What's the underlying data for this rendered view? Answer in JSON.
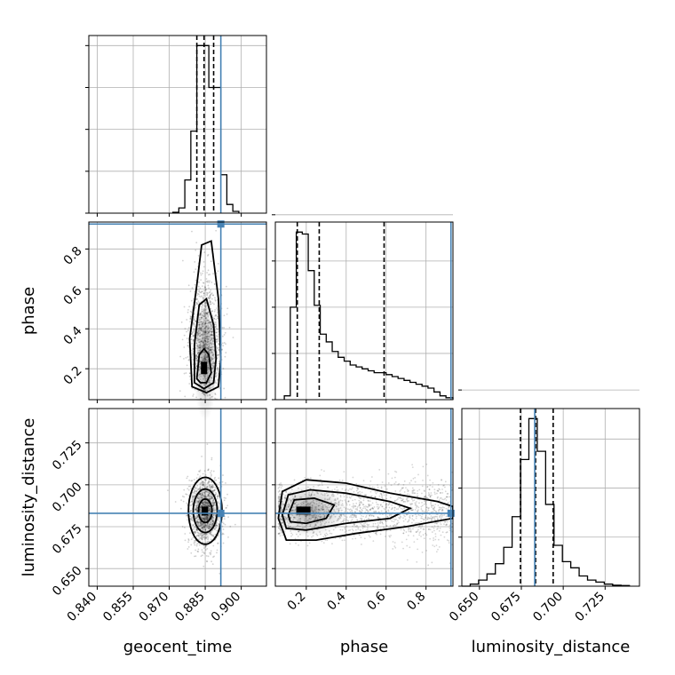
{
  "chart_data": {
    "type": "corner",
    "parameters": [
      "geocent_time",
      "phase",
      "luminosity_distance"
    ],
    "truths": {
      "geocent_time": 0.8915,
      "phase": 0.925,
      "luminosity_distance": 0.683
    },
    "axis_ranges": {
      "geocent_time": [
        0.8365,
        0.9105
      ],
      "phase": [
        0.045,
        0.935
      ],
      "luminosity_distance": [
        0.6395,
        0.7455
      ]
    },
    "ticks": {
      "geocent_time": [
        "0.840",
        "0.855",
        "0.870",
        "0.885",
        "0.900"
      ],
      "phase": [
        "0.2",
        "0.4",
        "0.6",
        "0.8"
      ],
      "luminosity_distance": [
        "0.650",
        "0.675",
        "0.700",
        "0.725"
      ]
    },
    "quantiles": {
      "geocent_time": [
        0.8815,
        0.8845,
        0.8885
      ],
      "phase": [
        0.155,
        0.265,
        0.59
      ],
      "luminosity_distance": [
        0.6745,
        0.6835,
        0.694
      ]
    },
    "histograms": {
      "geocent_time": {
        "edges": [
          0.8715,
          0.874,
          0.8765,
          0.879,
          0.8815,
          0.884,
          0.8865,
          0.889,
          0.8915,
          0.894,
          0.8965,
          0.899
        ],
        "counts": [
          0.5,
          3,
          19,
          47,
          96,
          96,
          72,
          72,
          22,
          5,
          1
        ]
      },
      "phase": {
        "edges": [
          0.09,
          0.12,
          0.15,
          0.18,
          0.21,
          0.24,
          0.27,
          0.3,
          0.33,
          0.36,
          0.39,
          0.42,
          0.45,
          0.48,
          0.51,
          0.54,
          0.57,
          0.6,
          0.63,
          0.66,
          0.69,
          0.72,
          0.75,
          0.78,
          0.81,
          0.84,
          0.87,
          0.9,
          0.935
        ],
        "counts": [
          2,
          48,
          87,
          86,
          67,
          49,
          34,
          30,
          25,
          22,
          20,
          18,
          17,
          16,
          15,
          14,
          14,
          13,
          12,
          11,
          10,
          9,
          8,
          7,
          6,
          4,
          2,
          1
        ]
      },
      "luminosity_distance": {
        "edges": [
          0.6395,
          0.6445,
          0.6495,
          0.6545,
          0.6595,
          0.6645,
          0.6695,
          0.6745,
          0.6795,
          0.6845,
          0.6895,
          0.6945,
          0.6995,
          0.7045,
          0.7095,
          0.7145,
          0.7195,
          0.7245,
          0.7295,
          0.7345,
          0.7395
        ],
        "counts": [
          0,
          1,
          3,
          6,
          11,
          19,
          34,
          62,
          82,
          66,
          40,
          20,
          12,
          9,
          5,
          3,
          2,
          1,
          0.5,
          0.3
        ]
      }
    },
    "grid": true,
    "colors": {
      "truth": "#4682b4",
      "hist": "#000000",
      "grid": "#b0b0b0"
    }
  }
}
